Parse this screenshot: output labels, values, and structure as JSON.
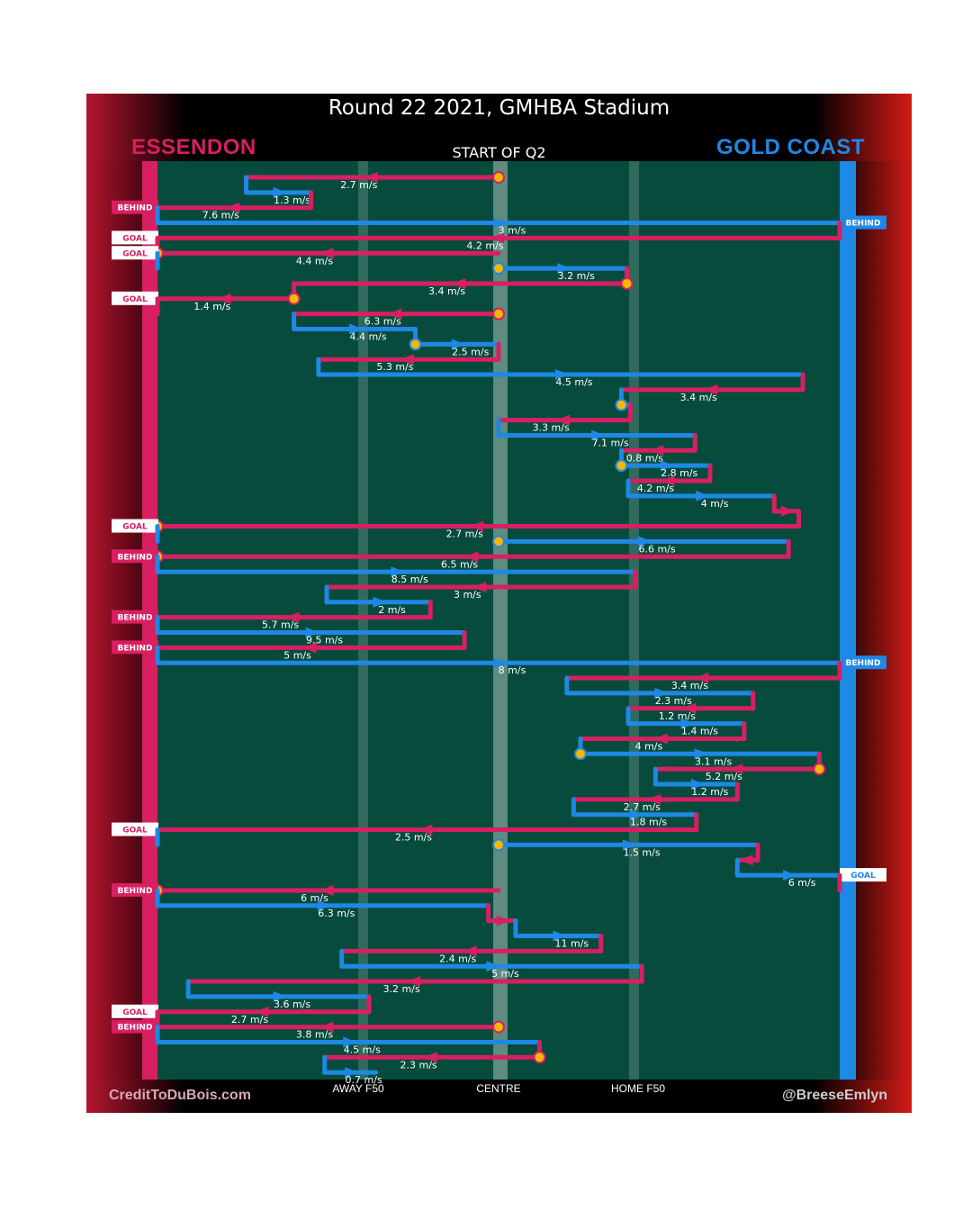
{
  "header": {
    "title": "Round 22 2021, GMHBA Stadium",
    "home_team": "ESSENDON",
    "away_team": "GOLD COAST",
    "subtitle": "START OF Q2"
  },
  "footer": {
    "credit_left": "CreditToDuBois.com",
    "credit_right": "@BreeseEmlyn"
  },
  "colors": {
    "essendon": "#d81f62",
    "gold_coast": "#1e88e5",
    "ground": "#074b3d",
    "marker": "#f5b800",
    "label_bg": "#ffffff"
  },
  "chart_data": {
    "type": "line",
    "x_axis": {
      "range": [
        "Essendon goal",
        "Gold Coast goal"
      ],
      "tick_labels": [
        "AWAY F50",
        "CENTRE",
        "HOME F50"
      ]
    },
    "units": "m/s",
    "series": [
      {
        "name": "ESSENDON",
        "color": "#d81f62"
      },
      {
        "name": "GOLD COAST",
        "color": "#1e88e5"
      }
    ],
    "chains": [
      {
        "team": "ESSENDON",
        "speed": "2.7 m/s",
        "from": 0.5,
        "to": 0.13,
        "marker": "start",
        "turn": null,
        "result": null
      },
      {
        "team": "GOLD COAST",
        "speed": "1.3 m/s",
        "from": 0.13,
        "to": 0.225,
        "marker": null,
        "turn": {
          "at": 0.225,
          "to_row": 3
        },
        "result": null
      },
      {
        "team": "ESSENDON",
        "speed": "7.6 m/s",
        "from": 0.225,
        "to": 0.0,
        "marker": null,
        "turn": null,
        "result": "BEHIND"
      },
      {
        "team": "GOLD COAST",
        "speed": "3 m/s",
        "from": 0.0,
        "to": 1.0,
        "marker": null,
        "turn": null,
        "result": "BEHIND"
      },
      {
        "team": "ESSENDON",
        "speed": "4.2 m/s",
        "from": 1.0,
        "to": 0.0,
        "marker": null,
        "turn": null,
        "result": "GOAL"
      },
      {
        "team": "ESSENDON",
        "speed": "4.4 m/s",
        "from": 0.5,
        "to": 0.0,
        "marker": "end",
        "turn": null,
        "result": "GOAL"
      },
      {
        "team": "GOLD COAST",
        "speed": "3.2 m/s",
        "from": 0.5,
        "to": 0.688,
        "marker": "start",
        "turn": null,
        "result": null
      },
      {
        "team": "ESSENDON",
        "speed": "3.4 m/s",
        "from": 0.688,
        "to": 0.2,
        "marker": "start",
        "turn": null,
        "result": null
      },
      {
        "team": "ESSENDON",
        "speed": "1.4 m/s",
        "from": 0.2,
        "to": 0.0,
        "marker": "start",
        "turn": null,
        "result": "GOAL"
      },
      {
        "team": "ESSENDON",
        "speed": "6.3 m/s",
        "from": 0.5,
        "to": 0.2,
        "marker": "start",
        "turn": null,
        "result": null
      },
      {
        "team": "GOLD COAST",
        "speed": "4.4 m/s",
        "from": 0.2,
        "to": 0.378,
        "marker": null,
        "turn": null,
        "result": null
      },
      {
        "team": "GOLD COAST",
        "speed": "2.5 m/s",
        "from": 0.378,
        "to": 0.5,
        "marker": "start",
        "turn": null,
        "result": null
      },
      {
        "team": "ESSENDON",
        "speed": "5.3 m/s",
        "from": 0.5,
        "to": 0.236,
        "marker": null,
        "turn": null,
        "result": null
      },
      {
        "team": "GOLD COAST",
        "speed": "4.5 m/s",
        "from": 0.236,
        "to": 0.946,
        "marker": null,
        "turn": null,
        "result": null
      },
      {
        "team": "ESSENDON",
        "speed": "3.4 m/s",
        "from": 0.946,
        "to": 0.68,
        "marker": null,
        "turn": null,
        "result": null
      },
      {
        "team": "GOLD COAST",
        "speed": "",
        "from": 0.68,
        "to": 0.693,
        "marker": "start",
        "turn": null,
        "result": null
      },
      {
        "team": "ESSENDON",
        "speed": "3.3 m/s",
        "from": 0.693,
        "to": 0.5,
        "marker": null,
        "turn": null,
        "result": null
      },
      {
        "team": "GOLD COAST",
        "speed": "7.1 m/s",
        "from": 0.5,
        "to": 0.788,
        "marker": null,
        "turn": null,
        "result": null
      },
      {
        "team": "ESSENDON",
        "speed": "0.8 m/s",
        "from": 0.788,
        "to": 0.68,
        "marker": null,
        "turn": null,
        "result": null
      },
      {
        "team": "GOLD COAST",
        "speed": "2.8 m/s",
        "from": 0.68,
        "to": 0.81,
        "marker": "start",
        "turn": null,
        "result": null
      },
      {
        "team": "ESSENDON",
        "speed": "4.2 m/s",
        "from": 0.81,
        "to": 0.69,
        "marker": null,
        "turn": null,
        "result": null
      },
      {
        "team": "GOLD COAST",
        "speed": "4 m/s",
        "from": 0.69,
        "to": 0.904,
        "marker": null,
        "turn": null,
        "result": null
      },
      {
        "team": "ESSENDON",
        "speed": "",
        "from": 0.904,
        "to": 0.94,
        "marker": null,
        "turn": null,
        "result": null
      },
      {
        "team": "ESSENDON",
        "speed": "2.7 m/s",
        "from": 0.94,
        "to": 0.0,
        "marker": "end",
        "turn": null,
        "result": "GOAL"
      },
      {
        "team": "GOLD COAST",
        "speed": "6.6 m/s",
        "from": 0.5,
        "to": 0.925,
        "marker": "start",
        "turn": null,
        "result": null
      },
      {
        "team": "ESSENDON",
        "speed": "6.5 m/s",
        "from": 0.925,
        "to": 0.0,
        "marker": "end",
        "turn": null,
        "result": "BEHIND"
      },
      {
        "team": "GOLD COAST",
        "speed": "8.5 m/s",
        "from": 0.0,
        "to": 0.7,
        "marker": null,
        "turn": null,
        "result": null
      },
      {
        "team": "ESSENDON",
        "speed": "3 m/s",
        "from": 0.7,
        "to": 0.248,
        "marker": null,
        "turn": null,
        "result": null
      },
      {
        "team": "GOLD COAST",
        "speed": "2 m/s",
        "from": 0.248,
        "to": 0.4,
        "marker": null,
        "turn": null,
        "result": null
      },
      {
        "team": "ESSENDON",
        "speed": "5.7 m/s",
        "from": 0.4,
        "to": 0.0,
        "marker": null,
        "turn": null,
        "result": "BEHIND"
      },
      {
        "team": "GOLD COAST",
        "speed": "9.5 m/s",
        "from": 0.0,
        "to": 0.45,
        "marker": null,
        "turn": null,
        "result": null
      },
      {
        "team": "ESSENDON",
        "speed": "5 m/s",
        "from": 0.45,
        "to": 0.0,
        "marker": null,
        "turn": null,
        "result": "BEHIND"
      },
      {
        "team": "GOLD COAST",
        "speed": "8 m/s",
        "from": 0.0,
        "to": 1.0,
        "marker": null,
        "turn": null,
        "result": "BEHIND"
      },
      {
        "team": "ESSENDON",
        "speed": "3.4 m/s",
        "from": 1.0,
        "to": 0.6,
        "marker": null,
        "turn": null,
        "result": null
      },
      {
        "team": "GOLD COAST",
        "speed": "2.3 m/s",
        "from": 0.6,
        "to": 0.873,
        "marker": null,
        "turn": null,
        "result": null
      },
      {
        "team": "ESSENDON",
        "speed": "1.2 m/s",
        "from": 0.873,
        "to": 0.69,
        "marker": null,
        "turn": null,
        "result": null
      },
      {
        "team": "GOLD COAST",
        "speed": "1.4 m/s",
        "from": 0.69,
        "to": 0.86,
        "marker": null,
        "turn": null,
        "result": null
      },
      {
        "team": "ESSENDON",
        "speed": "4 m/s",
        "from": 0.86,
        "to": 0.62,
        "marker": null,
        "turn": null,
        "result": null
      },
      {
        "team": "GOLD COAST",
        "speed": "3.1 m/s",
        "from": 0.62,
        "to": 0.97,
        "marker": "start",
        "turn": null,
        "result": null
      },
      {
        "team": "ESSENDON",
        "speed": "5.2 m/s",
        "from": 0.97,
        "to": 0.73,
        "marker": "start",
        "turn": null,
        "result": null
      },
      {
        "team": "GOLD COAST",
        "speed": "1.2 m/s",
        "from": 0.73,
        "to": 0.85,
        "marker": null,
        "turn": null,
        "result": null
      },
      {
        "team": "ESSENDON",
        "speed": "2.7 m/s",
        "from": 0.85,
        "to": 0.61,
        "marker": null,
        "turn": null,
        "result": null
      },
      {
        "team": "GOLD COAST",
        "speed": "1.8 m/s",
        "from": 0.61,
        "to": 0.79,
        "marker": null,
        "turn": null,
        "result": null
      },
      {
        "team": "ESSENDON",
        "speed": "2.5 m/s",
        "from": 0.79,
        "to": 0.0,
        "marker": null,
        "turn": null,
        "result": "GOAL"
      },
      {
        "team": "GOLD COAST",
        "speed": "1.5 m/s",
        "from": 0.5,
        "to": 0.88,
        "marker": "start",
        "turn": null,
        "result": null
      },
      {
        "team": "ESSENDON",
        "speed": "",
        "from": 0.88,
        "to": 0.85,
        "marker": null,
        "turn": null,
        "result": null
      },
      {
        "team": "GOLD COAST",
        "speed": "6 m/s",
        "from": 0.85,
        "to": 1.0,
        "marker": null,
        "turn": null,
        "result": "GOAL"
      },
      {
        "team": "ESSENDON",
        "speed": "6 m/s",
        "from": 0.5,
        "to": 0.0,
        "marker": "end",
        "turn": null,
        "result": "BEHIND"
      },
      {
        "team": "GOLD COAST",
        "speed": "6.3 m/s",
        "from": 0.0,
        "to": 0.485,
        "marker": null,
        "turn": null,
        "result": null
      },
      {
        "team": "ESSENDON",
        "speed": "",
        "from": 0.485,
        "to": 0.525,
        "marker": null,
        "turn": null,
        "result": null
      },
      {
        "team": "GOLD COAST",
        "speed": "11 m/s",
        "from": 0.525,
        "to": 0.65,
        "marker": null,
        "turn": null,
        "result": null
      },
      {
        "team": "ESSENDON",
        "speed": "2.4 m/s",
        "from": 0.65,
        "to": 0.27,
        "marker": null,
        "turn": null,
        "result": null
      },
      {
        "team": "GOLD COAST",
        "speed": "5 m/s",
        "from": 0.27,
        "to": 0.71,
        "marker": null,
        "turn": null,
        "result": null
      },
      {
        "team": "ESSENDON",
        "speed": "3.2 m/s",
        "from": 0.71,
        "to": 0.045,
        "marker": null,
        "turn": null,
        "result": null
      },
      {
        "team": "GOLD COAST",
        "speed": "3.6 m/s",
        "from": 0.045,
        "to": 0.31,
        "marker": null,
        "turn": null,
        "result": null
      },
      {
        "team": "ESSENDON",
        "speed": "2.7 m/s",
        "from": 0.31,
        "to": 0.0,
        "marker": null,
        "turn": null,
        "result": "GOAL"
      },
      {
        "team": "ESSENDON",
        "speed": "3.8 m/s",
        "from": 0.5,
        "to": 0.0,
        "marker": "start",
        "turn": null,
        "result": "BEHIND"
      },
      {
        "team": "GOLD COAST",
        "speed": "4.5 m/s",
        "from": 0.0,
        "to": 0.56,
        "marker": null,
        "turn": null,
        "result": null
      },
      {
        "team": "ESSENDON",
        "speed": "2.3 m/s",
        "from": 0.56,
        "to": 0.245,
        "marker": "start",
        "turn": null,
        "result": null
      },
      {
        "team": "GOLD COAST",
        "speed": "0.7 m/s",
        "from": 0.245,
        "to": 0.32,
        "marker": null,
        "turn": null,
        "result": null
      }
    ]
  }
}
